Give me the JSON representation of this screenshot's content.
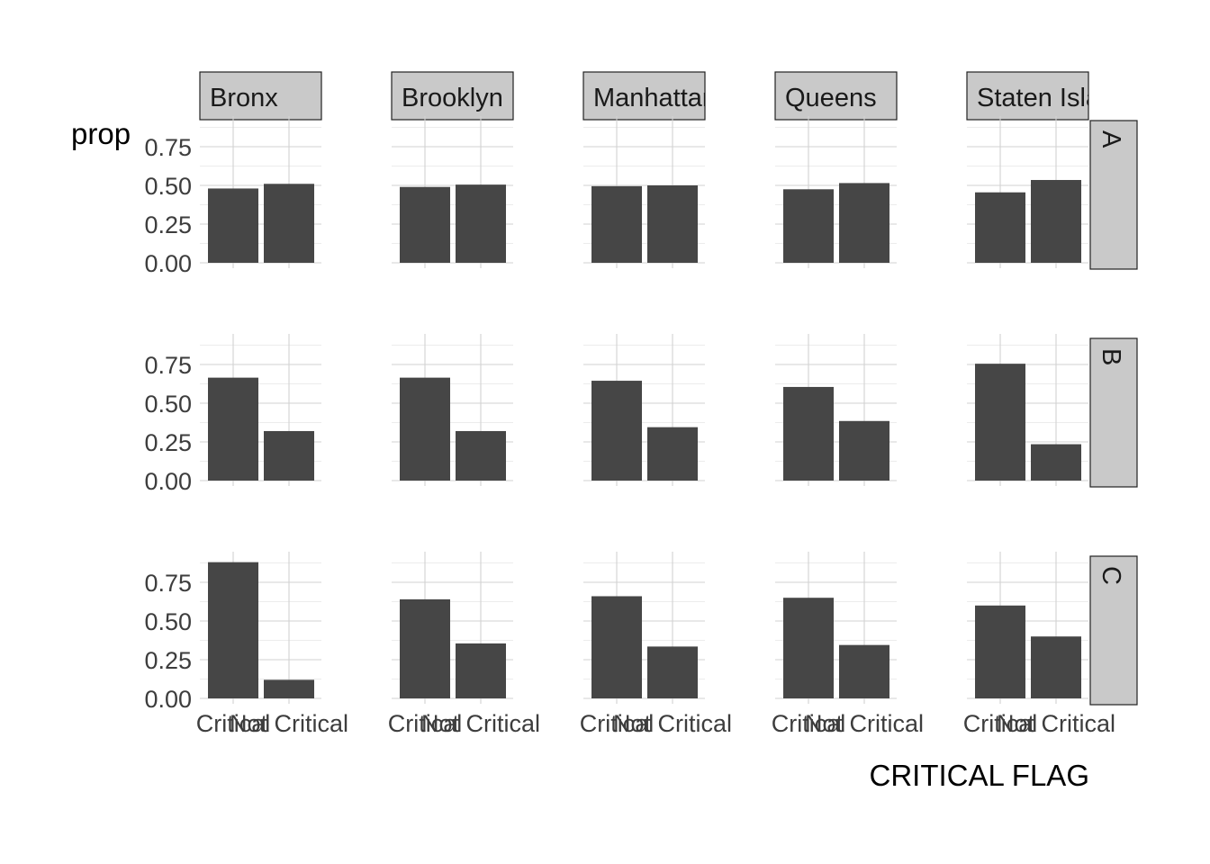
{
  "chart_data": {
    "type": "bar",
    "facet_columns": [
      "Bronx",
      "Brooklyn",
      "Manhattan",
      "Queens",
      "Staten Island"
    ],
    "facet_rows": [
      "A",
      "B",
      "C"
    ],
    "categories": [
      "Critical",
      "Not Critical"
    ],
    "xlabel": "CRITICAL FLAG",
    "ylabel": "prop",
    "ylim": [
      0,
      0.9
    ],
    "yticks": [
      0,
      0.25,
      0.5,
      0.75
    ],
    "ytick_labels": [
      "0.00",
      "0.25",
      "0.50",
      "0.75"
    ],
    "grid": true,
    "panels": [
      {
        "row": "A",
        "col": "Bronx",
        "values": [
          0.48,
          0.51
        ]
      },
      {
        "row": "A",
        "col": "Brooklyn",
        "values": [
          0.49,
          0.505
        ]
      },
      {
        "row": "A",
        "col": "Manhattan",
        "values": [
          0.495,
          0.5
        ]
      },
      {
        "row": "A",
        "col": "Queens",
        "values": [
          0.475,
          0.515
        ]
      },
      {
        "row": "A",
        "col": "Staten Island",
        "values": [
          0.455,
          0.535
        ]
      },
      {
        "row": "B",
        "col": "Bronx",
        "values": [
          0.665,
          0.32
        ]
      },
      {
        "row": "B",
        "col": "Brooklyn",
        "values": [
          0.665,
          0.32
        ]
      },
      {
        "row": "B",
        "col": "Manhattan",
        "values": [
          0.645,
          0.345
        ]
      },
      {
        "row": "B",
        "col": "Queens",
        "values": [
          0.605,
          0.385
        ]
      },
      {
        "row": "B",
        "col": "Staten Island",
        "values": [
          0.755,
          0.235
        ]
      },
      {
        "row": "C",
        "col": "Bronx",
        "values": [
          0.88,
          0.12
        ]
      },
      {
        "row": "C",
        "col": "Brooklyn",
        "values": [
          0.64,
          0.355
        ]
      },
      {
        "row": "C",
        "col": "Manhattan",
        "values": [
          0.66,
          0.335
        ]
      },
      {
        "row": "C",
        "col": "Queens",
        "values": [
          0.65,
          0.345
        ]
      },
      {
        "row": "C",
        "col": "Staten Island",
        "values": [
          0.6,
          0.4
        ]
      }
    ]
  }
}
